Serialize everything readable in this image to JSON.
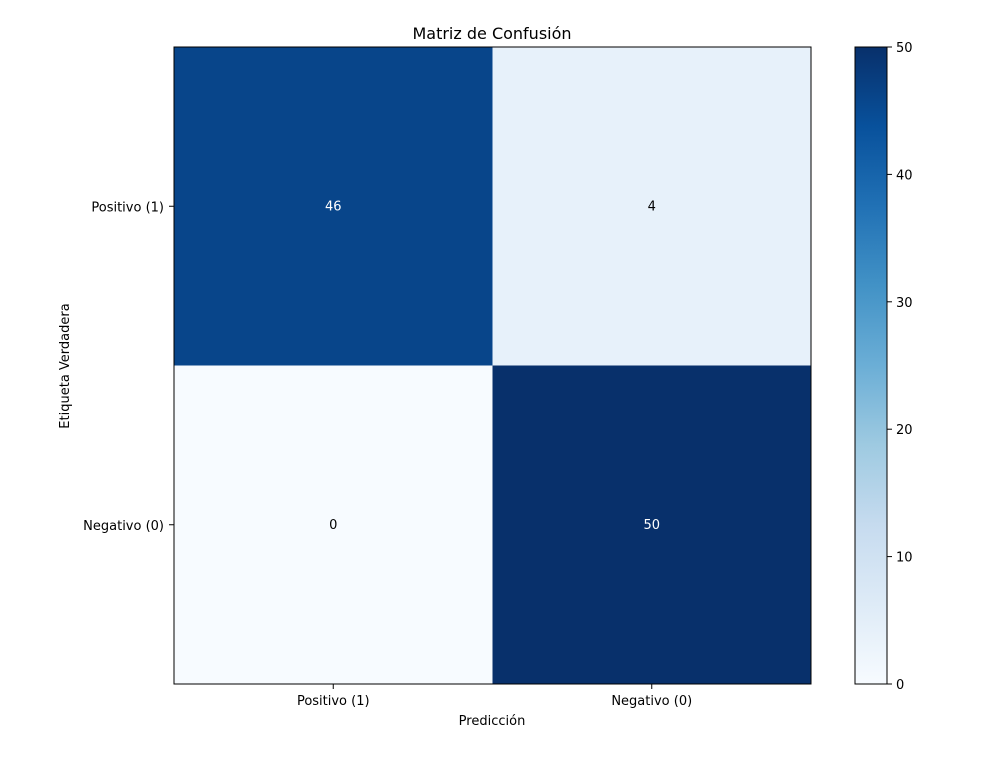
{
  "chart_data": {
    "type": "heatmap",
    "title": "Matriz de Confusión",
    "xlabel": "Predicción",
    "ylabel": "Etiqueta Verdadera",
    "x_categories": [
      "Positivo (1)",
      "Negativo (0)"
    ],
    "y_categories": [
      "Positivo (1)",
      "Negativo (0)"
    ],
    "values": [
      [
        46,
        4
      ],
      [
        0,
        50
      ]
    ],
    "colorscale": "Blues",
    "colorbar": {
      "range": [
        0,
        50
      ],
      "ticks": [
        0,
        10,
        20,
        30,
        40,
        50
      ]
    },
    "colors": {
      "low": "#f7fbff",
      "high": "#08306b",
      "label_dark": "#ffffff",
      "label_light": "#000000"
    }
  }
}
